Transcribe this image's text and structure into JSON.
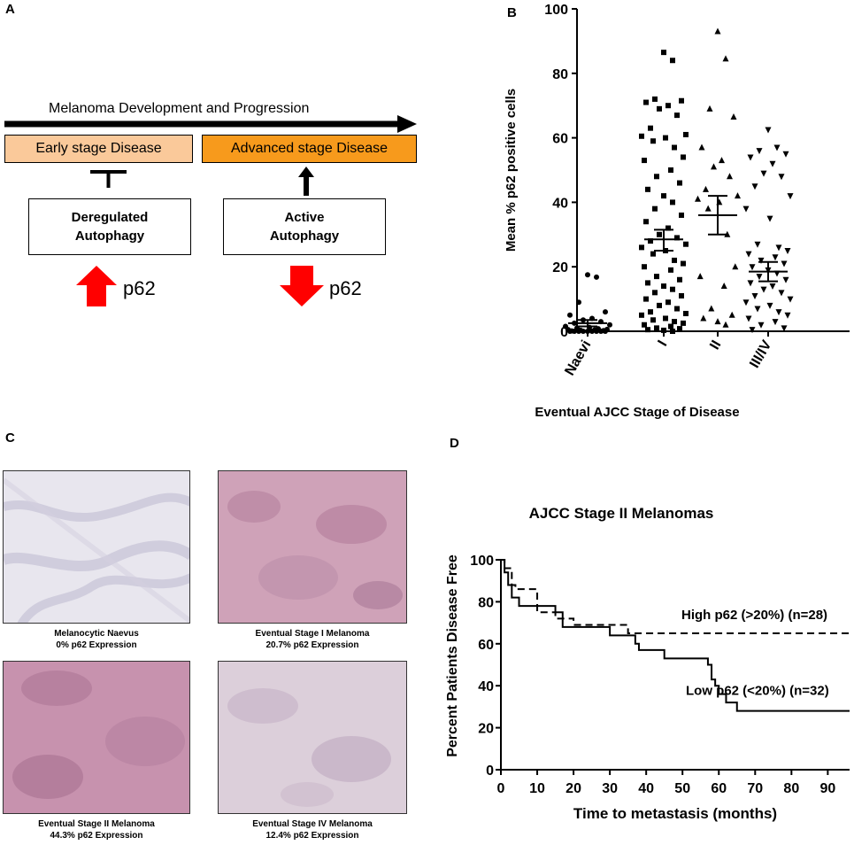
{
  "panels": {
    "a": {
      "label": "A",
      "arrow_title": "Melanoma Development and Progression",
      "early_stage": "Early stage Disease",
      "advanced_stage": "Advanced stage Disease",
      "deregulated": [
        "Deregulated",
        "Autophagy"
      ],
      "active": [
        "Active",
        "Autophagy"
      ],
      "p62_up": "p62",
      "p62_down": "p62",
      "colors": {
        "early": "#FAC99A",
        "advanced": "#F79A1C",
        "arrow": "#FF0000"
      }
    },
    "b": {
      "label": "B"
    },
    "c": {
      "label": "C",
      "images": [
        {
          "caption": [
            "Melanocytic Naevus",
            "0% p62 Expression"
          ]
        },
        {
          "caption": [
            "Eventual Stage I Melanoma",
            "20.7% p62 Expression"
          ]
        },
        {
          "caption": [
            "Eventual Stage II Melanoma",
            "44.3% p62 Expression"
          ]
        },
        {
          "caption": [
            "Eventual Stage IV Melanoma",
            "12.4% p62 Expression"
          ]
        }
      ]
    },
    "d": {
      "label": "D"
    }
  },
  "chart_data": [
    {
      "type": "scatter",
      "ylabel": "Mean % p62 positive cells",
      "xlabel": "Eventual AJCC Stage of Disease",
      "categories": [
        "Naevi",
        "I",
        "II",
        "III/IV"
      ],
      "ylim": [
        0,
        100
      ],
      "yticks": [
        "0",
        "20",
        "40",
        "60",
        "80",
        "100"
      ],
      "groups": [
        {
          "name": "Naevi",
          "marker": "circle",
          "mean": 2.5,
          "sem_low": 1.5,
          "sem_high": 3.5,
          "values": [
            17.5,
            16.8,
            9,
            6,
            5,
            4,
            3.5,
            3,
            2.5,
            2,
            1.5,
            1.2,
            1,
            0.8,
            0.6,
            0.5,
            0.4,
            0.3,
            0.2,
            0.1,
            0,
            0,
            0,
            0,
            0,
            0,
            0,
            0,
            0
          ]
        },
        {
          "name": "I",
          "marker": "square",
          "mean": 28.5,
          "sem_low": 25,
          "sem_high": 31.5,
          "values": [
            86.5,
            84,
            72,
            71.5,
            71,
            70,
            69,
            67,
            63,
            61,
            60.5,
            60,
            59,
            57,
            54,
            53,
            50,
            48,
            46,
            44,
            42,
            40,
            38,
            36,
            34,
            32,
            30,
            29,
            28,
            27,
            26,
            25,
            24,
            22,
            21,
            20,
            19,
            17,
            16,
            15,
            14,
            13,
            12,
            11,
            10,
            9,
            8,
            7,
            6,
            5.5,
            5,
            4,
            3.5,
            3,
            2.5,
            2,
            1.5,
            1,
            0.8,
            0.5,
            0.3,
            0
          ]
        },
        {
          "name": "II",
          "marker": "triangle-up",
          "mean": 36,
          "sem_low": 30,
          "sem_high": 42,
          "values": [
            93,
            84.5,
            69,
            66.5,
            57,
            53,
            51,
            48,
            44,
            42,
            41,
            40,
            38,
            30,
            20,
            17,
            14,
            7,
            5,
            4,
            3,
            2
          ]
        },
        {
          "name": "III/IV",
          "marker": "triangle-down",
          "mean": 18.5,
          "sem_low": 15.5,
          "sem_high": 21.5,
          "values": [
            62.5,
            57,
            56,
            55,
            54,
            52,
            49,
            48,
            45,
            42,
            38,
            35,
            27,
            26,
            25,
            24,
            23,
            22,
            21,
            20,
            19,
            18,
            17,
            16,
            15,
            14,
            13,
            12,
            11,
            10,
            9,
            8,
            7,
            6,
            5,
            4,
            3,
            2,
            1,
            0.5
          ]
        }
      ]
    },
    {
      "type": "line",
      "title": "AJCC Stage II Melanomas",
      "xlabel": "Time to metastasis (months)",
      "ylabel": "Percent Patients Disease Free",
      "xlim": [
        0,
        96
      ],
      "ylim": [
        0,
        100
      ],
      "xticks": [
        "0",
        "10",
        "20",
        "30",
        "40",
        "50",
        "60",
        "70",
        "80",
        "90"
      ],
      "yticks": [
        "0",
        "20",
        "40",
        "60",
        "80",
        "100"
      ],
      "series": [
        {
          "name": "High p62 (>20%) (n=28)",
          "style": "dashed",
          "x": [
            0,
            1,
            2,
            3,
            4,
            7,
            10,
            15,
            20,
            35,
            96
          ],
          "y": [
            100,
            96,
            96,
            88,
            86,
            86,
            75,
            72,
            69,
            65,
            65
          ]
        },
        {
          "name": "Low p62 (<20%) (n=32)",
          "style": "solid",
          "x": [
            0,
            1,
            2,
            3,
            5,
            10,
            15,
            17,
            30,
            35,
            37,
            38,
            45,
            55,
            57,
            58,
            59,
            60,
            62,
            65,
            96
          ],
          "y": [
            100,
            94,
            88,
            82,
            78,
            78,
            75,
            68,
            64,
            64,
            60,
            57,
            53,
            53,
            50,
            43,
            40,
            36,
            32,
            28,
            28
          ]
        }
      ]
    }
  ]
}
